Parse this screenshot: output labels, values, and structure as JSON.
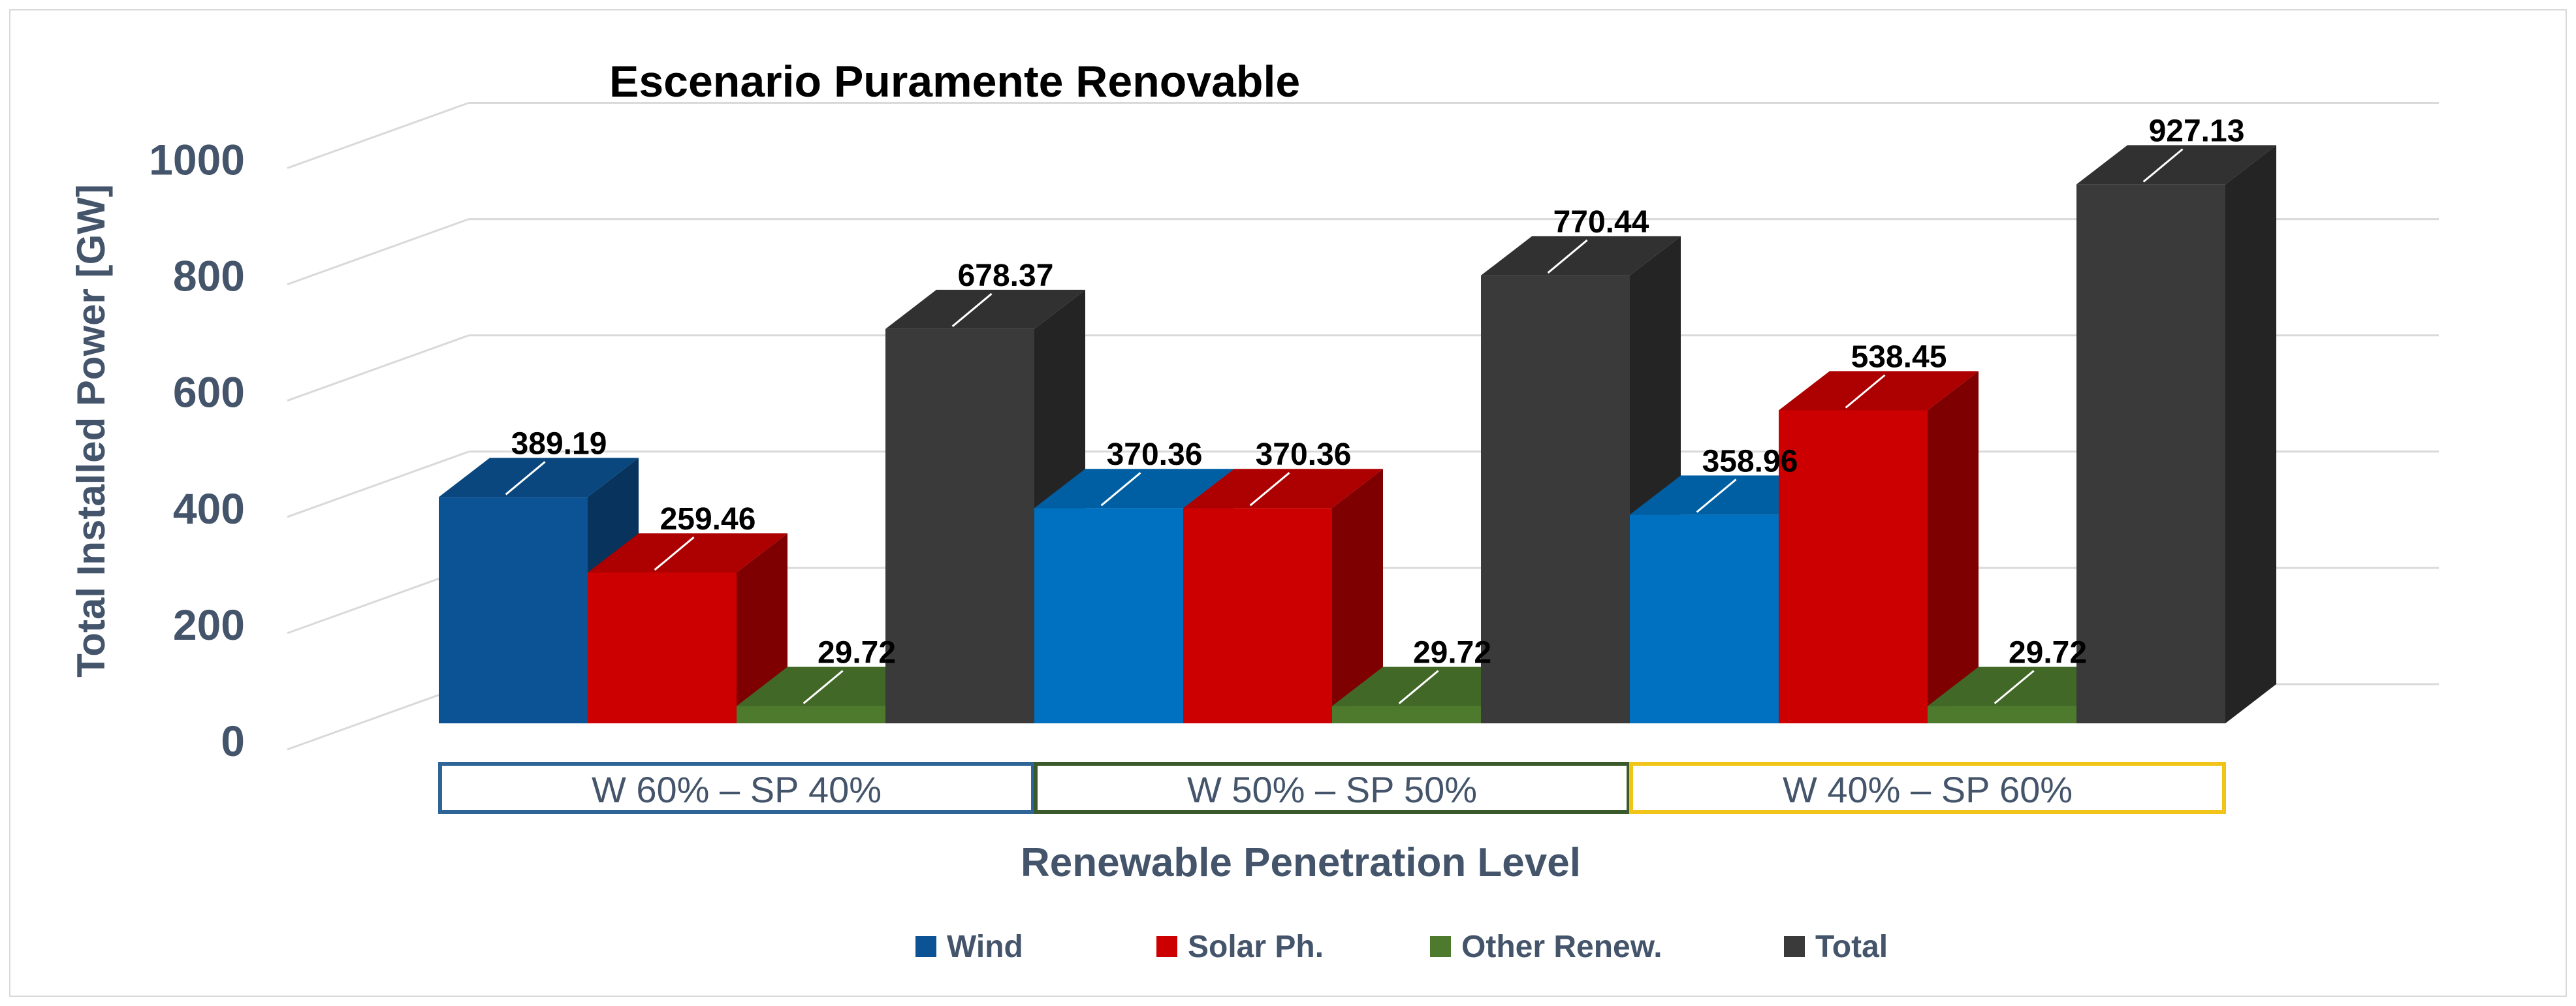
{
  "chart_data": {
    "type": "bar",
    "subtype": "3d-clustered-column",
    "title": "Escenario Puramente Renovable",
    "ylabel": "Total Installed Power [GW]",
    "xlabel": "Renewable Penetration Level",
    "ylim": [
      0,
      1000
    ],
    "yticks": [
      0,
      200,
      400,
      600,
      800,
      1000
    ],
    "gridlines": true,
    "legend_position": "bottom",
    "categories": [
      "W 60% – SP 40%",
      "W 50% – SP 50%",
      "W 40% – SP 60%"
    ],
    "category_box_colors": [
      "#2f6596",
      "#3a5a2b",
      "#f0c419"
    ],
    "series": [
      {
        "name": "Wind",
        "values": [
          389.19,
          370.36,
          358.96
        ],
        "labels": [
          "389.19",
          "370.36",
          "358.96"
        ],
        "colors": [
          "#0b5394",
          "#0070c0",
          "#0070c0"
        ]
      },
      {
        "name": "Solar Ph.",
        "values": [
          259.46,
          370.36,
          538.45
        ],
        "labels": [
          "259.46",
          "370.36",
          "538.45"
        ],
        "colors": [
          "#cc0000",
          "#cc0000",
          "#cc0000"
        ]
      },
      {
        "name": "Other Renew.",
        "values": [
          29.72,
          29.72,
          29.72
        ],
        "labels": [
          "29.72",
          "29.72",
          "29.72"
        ],
        "colors": [
          "#4e7a2e",
          "#4e7a2e",
          "#4e7a2e"
        ]
      },
      {
        "name": "Total",
        "values": [
          678.37,
          770.44,
          927.13
        ],
        "labels": [
          "678.37",
          "770.44",
          "927.13"
        ],
        "colors": [
          "#3a3a3a",
          "#3a3a3a",
          "#3a3a3a"
        ]
      }
    ],
    "legend_colors": [
      "#0b5394",
      "#cc0000",
      "#4e7a2e",
      "#3a3a3a"
    ]
  }
}
